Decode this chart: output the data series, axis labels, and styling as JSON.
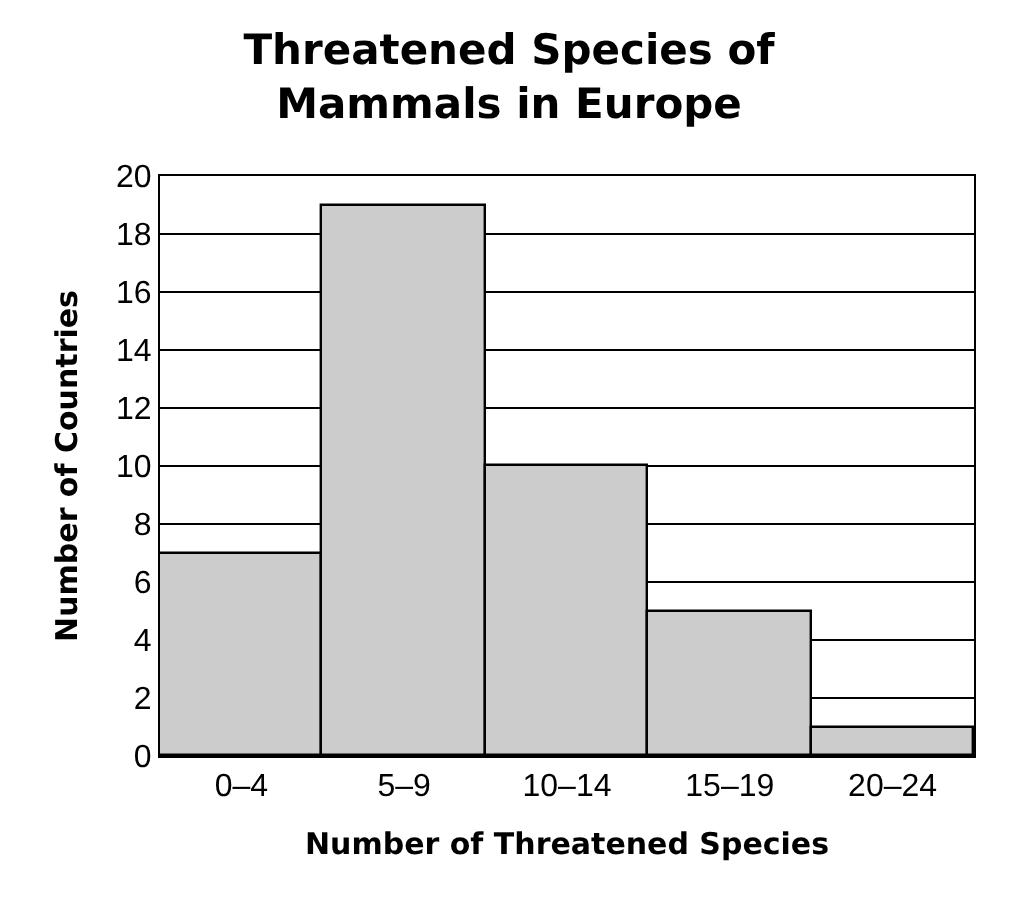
{
  "chart_data": {
    "type": "bar",
    "title": "Threatened Species of\nMammals in Europe",
    "xlabel": "Number of Threatened Species",
    "ylabel": "Number of Countries",
    "categories": [
      "0–4",
      "5–9",
      "10–14",
      "15–19",
      "20–24"
    ],
    "values": [
      7,
      19,
      10,
      5,
      1
    ],
    "color": "#cccccc",
    "ylim": [
      0,
      20
    ],
    "yticks": [
      0,
      2,
      4,
      6,
      8,
      10,
      12,
      14,
      16,
      18,
      20
    ],
    "grid": "y"
  }
}
